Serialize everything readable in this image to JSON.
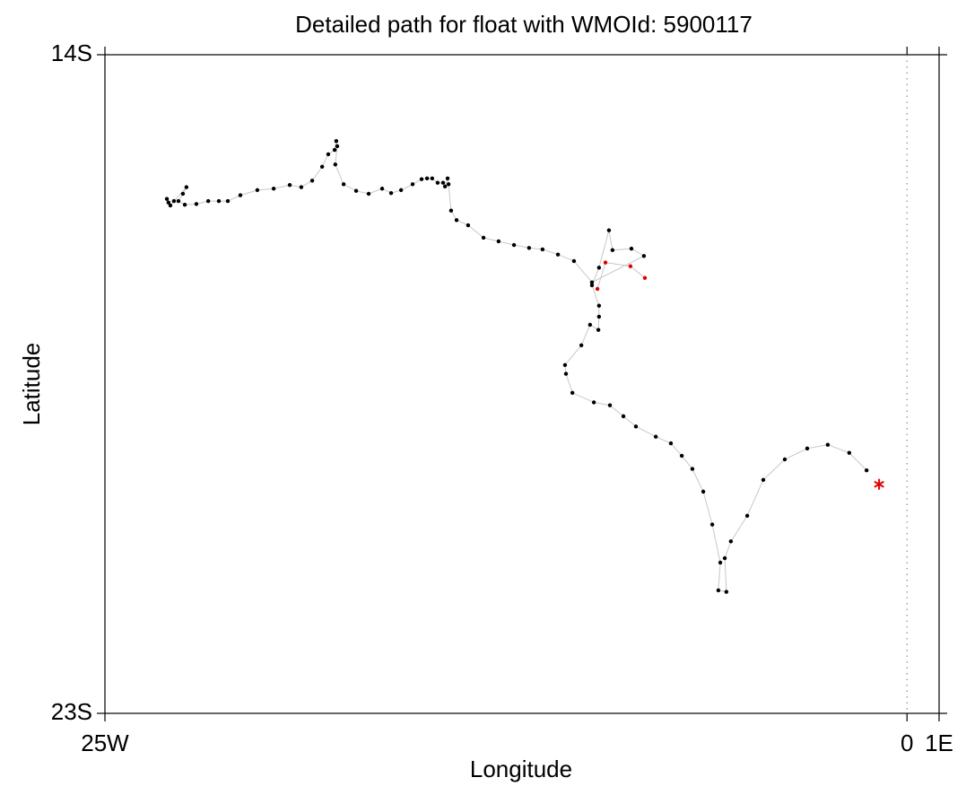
{
  "chart_data": {
    "type": "scatter",
    "title": "Detailed path for float with WMOId: 5900117",
    "x_label": "Longitude",
    "y_label": "Latitude",
    "xlim": [
      -25,
      1
    ],
    "ylim": [
      -23,
      -14
    ],
    "xticks": [
      {
        "value": -25,
        "label": "25W"
      },
      0,
      {
        "value": 1,
        "label": "1E"
      }
    ],
    "yticks": [
      {
        "value": -14,
        "label": "14S"
      },
      {
        "value": -23,
        "label": "23S"
      }
    ],
    "zero_line": true,
    "series": [
      {
        "color": "#000000",
        "line_color": "#c8c8c8",
        "marker": "dot",
        "x": [
          -1.26,
          -1.8,
          -2.47,
          -3.11,
          -3.81,
          -4.48,
          -4.98,
          -5.49,
          -5.68,
          -5.63,
          -5.88,
          -5.82,
          -6.07,
          -6.35,
          -6.69,
          -7.02,
          -7.36,
          -7.83,
          -8.45,
          -8.84,
          -9.26,
          -9.76,
          -10.43,
          -10.63,
          -10.66,
          -10.15,
          -9.88,
          -9.62,
          -9.6,
          -9.6,
          -9.82,
          -9.6,
          -9.29,
          -9.18,
          -8.59,
          -8.2,
          -9.82,
          -10.38,
          -10.88,
          -11.36,
          -11.78,
          -12.25,
          -12.73,
          -13.2,
          -13.68,
          -14.04,
          -14.21,
          -14.29,
          -14.32,
          -14.4,
          -14.46,
          -14.63,
          -14.8,
          -14.96,
          -15.13,
          -15.41,
          -15.77,
          -16.08,
          -16.36,
          -16.78,
          -17.17,
          -17.56,
          -17.82,
          -17.76,
          -17.79,
          -17.84,
          -18.04,
          -18.23,
          -18.54,
          -18.88,
          -19.24,
          -19.74,
          -20.25,
          -20.78,
          -21.17,
          -21.45,
          -21.78,
          -22.15,
          -22.51,
          -22.71,
          -22.57,
          -22.46,
          -22.85,
          -22.96,
          -23.02,
          -23.07
        ],
        "values": [
          -19.68,
          -19.44,
          -19.33,
          -19.38,
          -19.53,
          -19.81,
          -20.3,
          -20.65,
          -20.88,
          -21.34,
          -21.32,
          -20.94,
          -20.42,
          -19.97,
          -19.66,
          -19.48,
          -19.31,
          -19.22,
          -19.08,
          -18.94,
          -18.79,
          -18.75,
          -18.62,
          -18.36,
          -18.24,
          -17.97,
          -17.69,
          -17.76,
          -17.58,
          -17.43,
          -17.15,
          -16.91,
          -16.4,
          -16.67,
          -16.65,
          -16.75,
          -17.11,
          -16.82,
          -16.73,
          -16.66,
          -16.64,
          -16.6,
          -16.55,
          -16.5,
          -16.33,
          -16.26,
          -16.13,
          -15.77,
          -15.69,
          -15.8,
          -15.75,
          -15.75,
          -15.69,
          -15.69,
          -15.7,
          -15.77,
          -15.85,
          -15.89,
          -15.83,
          -15.9,
          -15.86,
          -15.77,
          -15.5,
          -15.25,
          -15.18,
          -15.3,
          -15.36,
          -15.53,
          -15.72,
          -15.81,
          -15.78,
          -15.83,
          -15.85,
          -15.92,
          -16.0,
          -16.0,
          -16.0,
          -16.04,
          -16.05,
          -16.0,
          -15.9,
          -15.81,
          -16.0,
          -16.06,
          -16.02,
          -15.97
        ]
      },
      {
        "color": "#e00000",
        "line_color": "#c8c8c8",
        "marker": "dot",
        "x": [
          -9.65,
          -9.4,
          -8.62,
          -8.17
        ],
        "values": [
          -17.2,
          -16.84,
          -16.89,
          -17.05
        ]
      },
      {
        "color": "#e00000",
        "marker": "star",
        "x": [
          -0.87
        ],
        "values": [
          -19.87
        ]
      }
    ]
  }
}
